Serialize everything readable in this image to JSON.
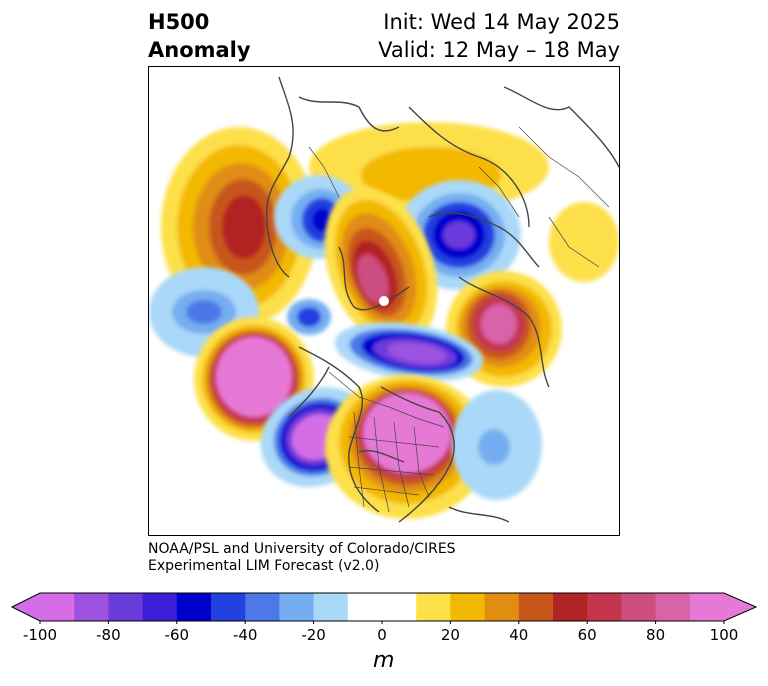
{
  "title": {
    "left_line1": "H500",
    "left_line2": "Anomaly",
    "right_line1": "Init: Wed 14 May 2025",
    "right_line2": "Valid: 12 May – 18 May"
  },
  "credit": {
    "line1": "NOAA/PSL and University of Colorado/CIRES",
    "line2": "Experimental LIM Forecast (v2.0)"
  },
  "colorbar": {
    "unit": "m",
    "ticks": [
      "-100",
      "-80",
      "-60",
      "-40",
      "-20",
      "0",
      "20",
      "40",
      "60",
      "80",
      "100"
    ],
    "colors": [
      "#d56ee6",
      "#9c52df",
      "#6a3bdb",
      "#3a1fd6",
      "#0000cd",
      "#2340e0",
      "#4c78e8",
      "#74aef0",
      "#aad8f8",
      "#ffffff",
      "#ffffff",
      "#fde04a",
      "#f3b800",
      "#e08d12",
      "#c8571a",
      "#b22424",
      "#c4354e",
      "#cc4d80",
      "#d863a8",
      "#e678d6"
    ],
    "extend_low_color": "#d56ee6",
    "extend_high_color": "#e678d6"
  },
  "map": {
    "projection": "north-polar-stereographic",
    "field": "500 hPa height anomaly",
    "features": [
      "coastlines",
      "country borders",
      "US state borders"
    ]
  }
}
